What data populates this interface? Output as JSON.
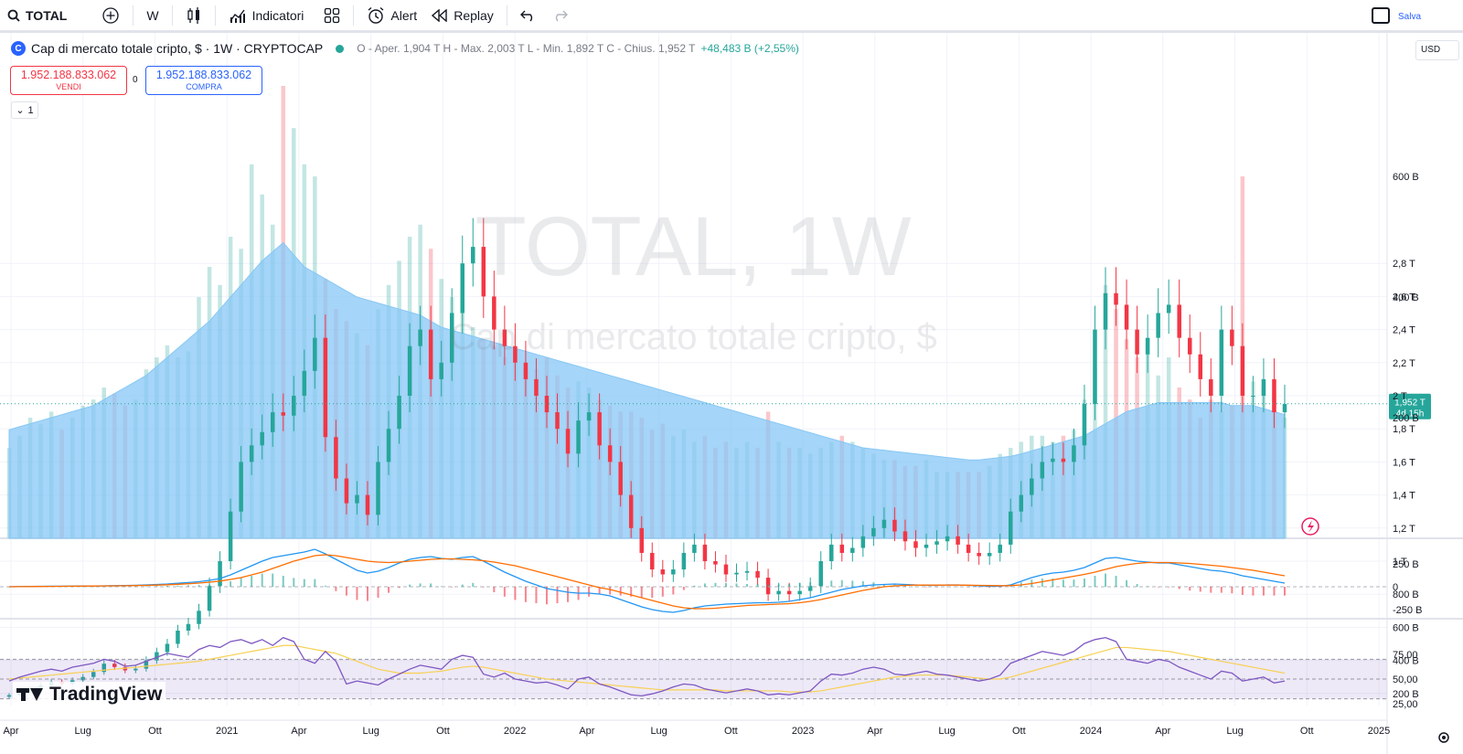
{
  "toolbar": {
    "symbol": "TOTAL",
    "interval": "W",
    "indicators_label": "Indicatori",
    "alert_label": "Alert",
    "replay_label": "Replay",
    "save_label": "Salva"
  },
  "legend": {
    "logo_text": "C",
    "title": "Cap di mercato totale cripto, $ · 1W · CRYPTOCAP",
    "ohlc_text": "O - Aper. 1,904 T  H - Max. 2,003 T  L - Min. 1,892 T  C - Chius. 1,952 T",
    "change_text": "+48,483 B (+2,55%)"
  },
  "trade": {
    "sell_price": "1.952.188.833.062",
    "sell_label": "VENDI",
    "buy_price": "1.952.188.833.062",
    "buy_label": "COMPRA",
    "spread": "0"
  },
  "collapse_label": "1",
  "currency": "USD",
  "watermark": {
    "symbol": "TOTAL, 1W",
    "name": "Cap di mercato totale cripto, $"
  },
  "price_badge": {
    "value": "1,952 T",
    "countdown": "4d 15h"
  },
  "branding": "TradingView",
  "colors": {
    "up": "#26a69a",
    "down": "#f23645",
    "volume_ma": "#87c7f5",
    "macd": "#2196f3",
    "signal": "#ff6d00",
    "rsi": "#7e57c2",
    "rsi_ma": "#f7d154",
    "rsi_band": "#e1d6f7"
  },
  "chart_data": [
    {
      "type": "candlestick",
      "title": "Cap di mercato totale cripto, $ · 1W · CRYPTOCAP",
      "y_ticks": [
        "200 B",
        "400 B",
        "600 B",
        "800 B",
        "1 T",
        "1,2 T",
        "1,4 T",
        "1,6 T",
        "1,8 T",
        "2 T",
        "2,2 T",
        "2,4 T",
        "2,6 T",
        "2,8 T"
      ],
      "x_ticks": [
        "Apr",
        "Lug",
        "Ott",
        "2021",
        "Apr",
        "Lug",
        "Ott",
        "2022",
        "Apr",
        "Lug",
        "Ott",
        "2023",
        "Apr",
        "Lug",
        "Ott",
        "2024",
        "Apr",
        "Lug",
        "Ott",
        "2025"
      ],
      "x_start": "2020-04",
      "x_end": "2024-10",
      "last_close_T": 1.952,
      "series": [
        {
          "name": "close_T",
          "values": [
            0.19,
            0.21,
            0.23,
            0.25,
            0.27,
            0.26,
            0.28,
            0.3,
            0.33,
            0.38,
            0.36,
            0.34,
            0.35,
            0.4,
            0.45,
            0.5,
            0.58,
            0.62,
            0.7,
            0.85,
            1.0,
            1.3,
            1.6,
            1.7,
            1.78,
            1.9,
            1.88,
            2.0,
            2.15,
            2.35,
            1.75,
            1.5,
            1.35,
            1.4,
            1.28,
            1.6,
            1.8,
            2.0,
            2.3,
            2.4,
            2.1,
            2.2,
            2.5,
            2.8,
            2.9,
            2.6,
            2.4,
            2.3,
            2.2,
            2.1,
            2.0,
            1.9,
            1.8,
            1.65,
            1.85,
            1.9,
            1.7,
            1.6,
            1.4,
            1.2,
            1.05,
            0.95,
            0.92,
            0.95,
            1.05,
            1.1,
            1.0,
            0.98,
            0.92,
            0.93,
            0.94,
            0.9,
            0.8,
            0.82,
            0.8,
            0.82,
            0.85,
            1.0,
            1.1,
            1.05,
            1.08,
            1.15,
            1.2,
            1.25,
            1.18,
            1.12,
            1.08,
            1.1,
            1.12,
            1.15,
            1.1,
            1.05,
            1.03,
            1.05,
            1.1,
            1.3,
            1.4,
            1.5,
            1.6,
            1.62,
            1.6,
            1.7,
            1.95,
            2.4,
            2.62,
            2.55,
            2.4,
            2.25,
            2.35,
            2.5,
            2.55,
            2.35,
            2.25,
            2.1,
            2.0,
            2.4,
            2.3,
            2.0,
            2.0,
            2.1,
            1.9,
            1.95
          ]
        }
      ]
    },
    {
      "type": "bar",
      "title": "Volume",
      "y_ticks": [
        "200 B",
        "400 B",
        "600 B"
      ],
      "series": [
        {
          "name": "volume_B",
          "values": [
            150,
            170,
            200,
            190,
            210,
            180,
            200,
            220,
            230,
            250,
            240,
            220,
            230,
            280,
            300,
            320,
            300,
            310,
            400,
            450,
            420,
            500,
            480,
            620,
            570,
            520,
            750,
            680,
            620,
            600,
            430,
            380,
            360,
            340,
            320,
            380,
            420,
            460,
            500,
            520,
            480,
            430,
            400,
            380,
            350,
            330,
            320,
            300,
            290,
            280,
            280,
            300,
            270,
            250,
            260,
            250,
            230,
            220,
            210,
            210,
            200,
            180,
            190,
            170,
            180,
            160,
            170,
            150,
            160,
            150,
            160,
            150,
            210,
            160,
            150,
            150,
            140,
            150,
            160,
            170,
            160,
            150,
            140,
            130,
            130,
            120,
            120,
            130,
            110,
            110,
            110,
            110,
            110,
            120,
            140,
            150,
            160,
            170,
            170,
            160,
            170,
            180,
            230,
            280,
            420,
            380,
            330,
            300,
            330,
            270,
            300,
            250,
            230,
            200,
            230,
            210,
            220,
            600,
            260,
            250,
            240,
            200
          ]
        },
        {
          "name": "volume_MA_B",
          "values": [
            180,
            185,
            190,
            195,
            200,
            205,
            210,
            215,
            220,
            230,
            240,
            250,
            260,
            270,
            285,
            300,
            315,
            330,
            345,
            360,
            380,
            400,
            420,
            440,
            460,
            475,
            490,
            470,
            450,
            440,
            430,
            420,
            410,
            400,
            395,
            390,
            385,
            380,
            375,
            370,
            360,
            350,
            345,
            340,
            335,
            330,
            325,
            320,
            315,
            310,
            305,
            300,
            295,
            290,
            285,
            280,
            275,
            270,
            265,
            260,
            255,
            250,
            245,
            240,
            235,
            230,
            225,
            220,
            215,
            210,
            205,
            200,
            195,
            190,
            185,
            180,
            175,
            170,
            165,
            160,
            155,
            150,
            148,
            146,
            144,
            142,
            140,
            138,
            136,
            134,
            132,
            130,
            130,
            132,
            134,
            136,
            140,
            145,
            150,
            155,
            160,
            165,
            170,
            180,
            190,
            200,
            210,
            215,
            220,
            225,
            225,
            225,
            225,
            225,
            225,
            225,
            220,
            220,
            220,
            215,
            210,
            205
          ]
        }
      ]
    },
    {
      "type": "line",
      "title": "MACD",
      "y_ticks": [
        "250 B",
        "0",
        "-250 B"
      ],
      "series": [
        {
          "name": "macd_B",
          "values": [
            0,
            2,
            4,
            5,
            6,
            6,
            7,
            8,
            9,
            10,
            12,
            14,
            16,
            20,
            25,
            30,
            38,
            46,
            55,
            70,
            90,
            130,
            180,
            230,
            280,
            320,
            340,
            360,
            380,
            410,
            360,
            300,
            240,
            180,
            150,
            170,
            210,
            260,
            300,
            320,
            330,
            310,
            300,
            320,
            330,
            280,
            220,
            160,
            110,
            60,
            20,
            -20,
            -40,
            -60,
            -70,
            -70,
            -80,
            -100,
            -140,
            -180,
            -220,
            -250,
            -270,
            -280,
            -260,
            -230,
            -210,
            -200,
            -190,
            -185,
            -180,
            -175,
            -175,
            -170,
            -160,
            -140,
            -120,
            -90,
            -60,
            -30,
            -10,
            10,
            20,
            25,
            30,
            25,
            20,
            15,
            15,
            20,
            20,
            15,
            10,
            5,
            5,
            20,
            60,
            100,
            130,
            150,
            160,
            180,
            210,
            260,
            310,
            320,
            300,
            280,
            270,
            260,
            260,
            240,
            220,
            200,
            180,
            170,
            150,
            120,
            100,
            80,
            60,
            40
          ]
        },
        {
          "name": "signal_B",
          "values": [
            0,
            1,
            2,
            3,
            4,
            5,
            6,
            7,
            8,
            9,
            10,
            11,
            13,
            15,
            18,
            22,
            27,
            33,
            40,
            50,
            62,
            80,
            100,
            130,
            160,
            200,
            240,
            280,
            310,
            340,
            350,
            340,
            320,
            300,
            280,
            270,
            265,
            270,
            280,
            290,
            300,
            305,
            305,
            300,
            295,
            285,
            270,
            250,
            230,
            200,
            170,
            140,
            110,
            80,
            50,
            20,
            -10,
            -30,
            -60,
            -90,
            -120,
            -150,
            -180,
            -210,
            -230,
            -240,
            -240,
            -235,
            -225,
            -215,
            -205,
            -200,
            -195,
            -190,
            -185,
            -175,
            -160,
            -140,
            -115,
            -90,
            -65,
            -40,
            -20,
            0,
            10,
            15,
            18,
            18,
            18,
            18,
            18,
            17,
            15,
            13,
            12,
            13,
            20,
            35,
            55,
            75,
            95,
            115,
            135,
            160,
            190,
            220,
            240,
            255,
            265,
            265,
            265,
            260,
            255,
            245,
            235,
            225,
            210,
            195,
            180,
            160,
            140,
            120
          ]
        }
      ]
    },
    {
      "type": "line",
      "title": "RSI",
      "y_ticks": [
        "75,00",
        "50,00",
        "25,00"
      ],
      "series": [
        {
          "name": "rsi",
          "values": [
            48,
            52,
            55,
            58,
            60,
            58,
            62,
            64,
            66,
            70,
            68,
            63,
            64,
            68,
            72,
            76,
            74,
            72,
            80,
            84,
            82,
            88,
            90,
            86,
            90,
            84,
            92,
            88,
            70,
            66,
            78,
            68,
            45,
            48,
            46,
            44,
            50,
            55,
            60,
            64,
            62,
            60,
            70,
            74,
            72,
            55,
            52,
            56,
            50,
            48,
            46,
            47,
            44,
            40,
            50,
            52,
            45,
            42,
            38,
            34,
            33,
            35,
            38,
            42,
            45,
            44,
            40,
            38,
            36,
            38,
            40,
            38,
            34,
            35,
            34,
            36,
            38,
            48,
            55,
            54,
            56,
            60,
            62,
            60,
            55,
            54,
            56,
            58,
            55,
            54,
            52,
            50,
            48,
            50,
            54,
            66,
            70,
            74,
            78,
            76,
            74,
            78,
            86,
            90,
            92,
            88,
            70,
            68,
            66,
            70,
            68,
            62,
            58,
            54,
            50,
            58,
            56,
            48,
            50,
            52,
            46,
            48
          ]
        },
        {
          "name": "rsi_ma",
          "values": [
            50,
            51,
            52,
            53,
            54,
            55,
            56,
            57,
            58,
            59,
            60,
            61,
            62,
            63,
            64,
            65,
            66,
            67,
            68,
            70,
            72,
            74,
            76,
            78,
            80,
            82,
            84,
            84,
            82,
            80,
            78,
            76,
            72,
            68,
            64,
            60,
            58,
            56,
            56,
            56,
            57,
            58,
            60,
            62,
            63,
            62,
            60,
            58,
            56,
            54,
            52,
            50,
            49,
            48,
            47,
            46,
            45,
            44,
            43,
            42,
            41,
            40,
            39,
            39,
            39,
            39,
            39,
            39,
            38,
            38,
            38,
            38,
            38,
            38,
            37,
            37,
            37,
            38,
            40,
            42,
            44,
            46,
            48,
            50,
            52,
            53,
            54,
            54,
            54,
            54,
            53,
            52,
            51,
            50,
            50,
            52,
            55,
            58,
            61,
            64,
            67,
            70,
            73,
            76,
            79,
            82,
            82,
            81,
            80,
            79,
            78,
            76,
            74,
            72,
            70,
            68,
            66,
            64,
            62,
            60,
            58,
            56
          ]
        }
      ]
    }
  ]
}
